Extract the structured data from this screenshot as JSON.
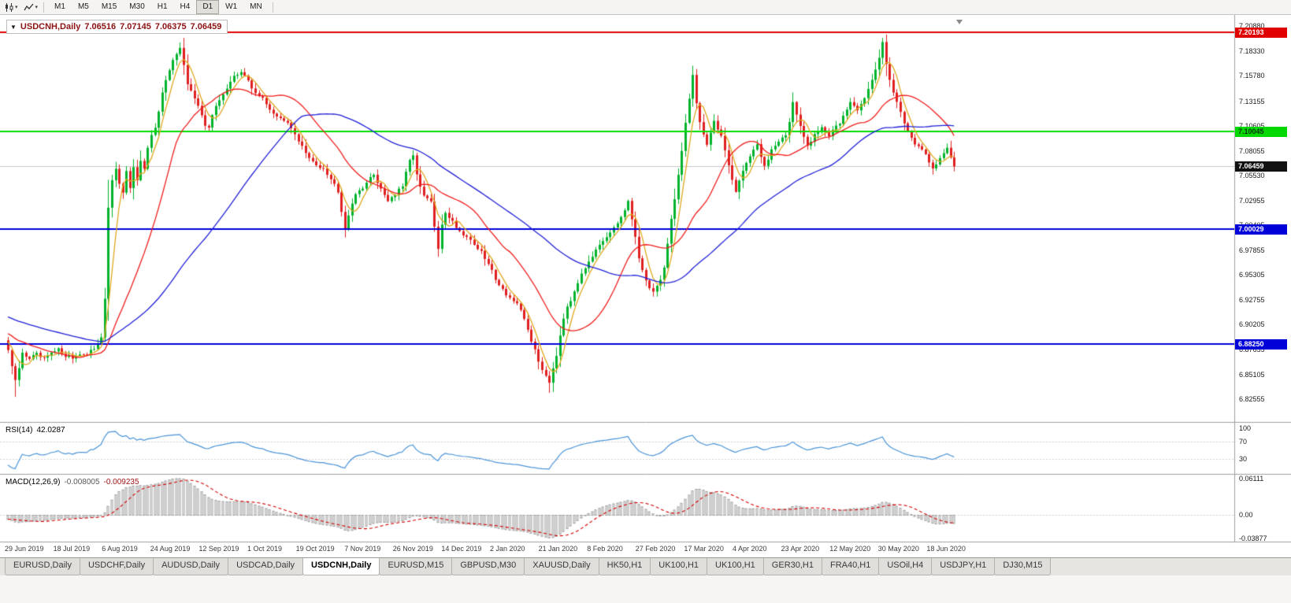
{
  "toolbar": {
    "icons": [
      {
        "name": "candlestick-chart-icon"
      },
      {
        "name": "line-chart-icon"
      }
    ],
    "timeframes": [
      "M1",
      "M5",
      "M15",
      "M30",
      "H1",
      "H4",
      "D1",
      "W1",
      "MN"
    ],
    "active_timeframe": "D1"
  },
  "chart": {
    "symbol_period": "USDCNH,Daily",
    "ohlc": {
      "open": "7.06516",
      "high": "7.07145",
      "low": "7.06375",
      "close": "7.06459"
    },
    "collapse_caret": "▼",
    "price_axis": {
      "labels": [
        "7.20880",
        "7.18330",
        "7.15780",
        "7.13155",
        "7.10605",
        "7.08055",
        "7.05530",
        "7.02955",
        "7.00405",
        "6.97855",
        "6.95305",
        "6.92755",
        "6.90205",
        "6.87655",
        "6.85105",
        "6.82555"
      ],
      "badges": [
        {
          "value": "7.20193",
          "bg": "#e00000",
          "fg": "#ffffff"
        },
        {
          "value": "7.10045",
          "bg": "#00d800",
          "fg": "#00320a"
        },
        {
          "value": "7.06459",
          "bg": "#111111",
          "fg": "#ffffff"
        },
        {
          "value": "7.00029",
          "bg": "#0000d8",
          "fg": "#ffffff"
        },
        {
          "value": "6.88250",
          "bg": "#0000d8",
          "fg": "#ffffff"
        }
      ]
    }
  },
  "rsi": {
    "label": "RSI(14)",
    "value": "42.0287",
    "axis_labels": [
      "100",
      "70",
      "30"
    ]
  },
  "macd": {
    "label": "MACD(12,26,9)",
    "main_value": "-0.008005",
    "signal_value": "-0.009235",
    "axis_labels": [
      "0.06111",
      "0.00",
      "-0.03877"
    ]
  },
  "date_axis": [
    "29 Jun 2019",
    "18 Jul 2019",
    "6 Aug 2019",
    "24 Aug 2019",
    "12 Sep 2019",
    "1 Oct 2019",
    "19 Oct 2019",
    "7 Nov 2019",
    "26 Nov 2019",
    "14 Dec 2019",
    "2 Jan 2020",
    "21 Jan 2020",
    "8 Feb 2020",
    "27 Feb 2020",
    "17 Mar 2020",
    "4 Apr 2020",
    "23 Apr 2020",
    "12 May 2020",
    "30 May 2020",
    "18 Jun 2020"
  ],
  "tabs": {
    "items": [
      "EURUSD,Daily",
      "USDCHF,Daily",
      "AUDUSD,Daily",
      "USDCAD,Daily",
      "USDCNH,Daily",
      "EURUSD,M15",
      "GBPUSD,M30",
      "XAUUSD,Daily",
      "HK50,H1",
      "UK100,H1",
      "UK100,H1",
      "GER30,H1",
      "FRA40,H1",
      "USOil,H4",
      "USDJPY,H1",
      "DJ30,M15"
    ],
    "active_index": 4
  },
  "chart_data": {
    "type": "candlestick",
    "symbol": "USDCNH",
    "timeframe": "Daily",
    "ylim": [
      6.82555,
      7.2088
    ],
    "y_tick_step": 0.0255,
    "x_labels": [
      "29 Jun 2019",
      "18 Jul 2019",
      "6 Aug 2019",
      "24 Aug 2019",
      "12 Sep 2019",
      "1 Oct 2019",
      "19 Oct 2019",
      "7 Nov 2019",
      "26 Nov 2019",
      "14 Dec 2019",
      "2 Jan 2020",
      "21 Jan 2020",
      "8 Feb 2020",
      "27 Feb 2020",
      "17 Mar 2020",
      "4 Apr 2020",
      "23 Apr 2020",
      "12 May 2020",
      "30 May 2020",
      "18 Jun 2020"
    ],
    "num_candles": 265,
    "up_color": "#00b32c",
    "down_color": "#e02020",
    "current_price": 7.06459,
    "anchors": [
      [
        0,
        6.876
      ],
      [
        2,
        6.843
      ],
      [
        4,
        6.872
      ],
      [
        6,
        6.868
      ],
      [
        8,
        6.871
      ],
      [
        10,
        6.866
      ],
      [
        12,
        6.872
      ],
      [
        14,
        6.876
      ],
      [
        16,
        6.871
      ],
      [
        18,
        6.868
      ],
      [
        20,
        6.873
      ],
      [
        22,
        6.87
      ],
      [
        24,
        6.878
      ],
      [
        26,
        6.89
      ],
      [
        27,
        6.93
      ],
      [
        28,
        7.02
      ],
      [
        29,
        7.051
      ],
      [
        30,
        7.06
      ],
      [
        31,
        7.048
      ],
      [
        32,
        7.036
      ],
      [
        33,
        7.058
      ],
      [
        34,
        7.044
      ],
      [
        35,
        7.062
      ],
      [
        36,
        7.05
      ],
      [
        37,
        7.068
      ],
      [
        38,
        7.06
      ],
      [
        39,
        7.083
      ],
      [
        40,
        7.096
      ],
      [
        41,
        7.106
      ],
      [
        42,
        7.123
      ],
      [
        43,
        7.14
      ],
      [
        44,
        7.152
      ],
      [
        45,
        7.163
      ],
      [
        46,
        7.172
      ],
      [
        47,
        7.182
      ],
      [
        48,
        7.188
      ],
      [
        49,
        7.168
      ],
      [
        50,
        7.15
      ],
      [
        51,
        7.142
      ],
      [
        52,
        7.133
      ],
      [
        53,
        7.125
      ],
      [
        54,
        7.118
      ],
      [
        55,
        7.108
      ],
      [
        56,
        7.105
      ],
      [
        57,
        7.116
      ],
      [
        58,
        7.126
      ],
      [
        59,
        7.132
      ],
      [
        60,
        7.14
      ],
      [
        61,
        7.146
      ],
      [
        63,
        7.156
      ],
      [
        65,
        7.162
      ],
      [
        66,
        7.158
      ],
      [
        68,
        7.145
      ],
      [
        70,
        7.138
      ],
      [
        72,
        7.128
      ],
      [
        74,
        7.12
      ],
      [
        76,
        7.113
      ],
      [
        78,
        7.108
      ],
      [
        80,
        7.098
      ],
      [
        82,
        7.085
      ],
      [
        84,
        7.072
      ],
      [
        86,
        7.066
      ],
      [
        88,
        7.064
      ],
      [
        90,
        7.052
      ],
      [
        92,
        7.04
      ],
      [
        93,
        7.02
      ],
      [
        94,
        7.001
      ],
      [
        95,
        7.015
      ],
      [
        96,
        7.028
      ],
      [
        98,
        7.04
      ],
      [
        100,
        7.048
      ],
      [
        102,
        7.056
      ],
      [
        104,
        7.042
      ],
      [
        106,
        7.03
      ],
      [
        108,
        7.036
      ],
      [
        110,
        7.044
      ],
      [
        112,
        7.07
      ],
      [
        113,
        7.078
      ],
      [
        114,
        7.056
      ],
      [
        115,
        7.042
      ],
      [
        116,
        7.034
      ],
      [
        118,
        7.028
      ],
      [
        120,
        6.978
      ],
      [
        121,
        7.005
      ],
      [
        122,
        7.018
      ],
      [
        124,
        7.008
      ],
      [
        126,
        6.998
      ],
      [
        128,
        6.993
      ],
      [
        130,
        6.985
      ],
      [
        132,
        6.976
      ],
      [
        134,
        6.964
      ],
      [
        136,
        6.95
      ],
      [
        138,
        6.938
      ],
      [
        140,
        6.93
      ],
      [
        142,
        6.922
      ],
      [
        144,
        6.908
      ],
      [
        146,
        6.886
      ],
      [
        148,
        6.864
      ],
      [
        150,
        6.85
      ],
      [
        151,
        6.844
      ],
      [
        152,
        6.858
      ],
      [
        153,
        6.872
      ],
      [
        154,
        6.892
      ],
      [
        155,
        6.91
      ],
      [
        156,
        6.922
      ],
      [
        158,
        6.934
      ],
      [
        160,
        6.956
      ],
      [
        162,
        6.968
      ],
      [
        164,
        6.978
      ],
      [
        166,
        6.986
      ],
      [
        168,
        6.996
      ],
      [
        170,
        7.006
      ],
      [
        172,
        7.02
      ],
      [
        173,
        7.028
      ],
      [
        174,
        7.008
      ],
      [
        175,
        6.993
      ],
      [
        176,
        6.972
      ],
      [
        177,
        6.958
      ],
      [
        178,
        6.946
      ],
      [
        180,
        6.936
      ],
      [
        182,
        6.948
      ],
      [
        183,
        6.962
      ],
      [
        184,
        6.986
      ],
      [
        185,
        7.01
      ],
      [
        186,
        7.032
      ],
      [
        187,
        7.056
      ],
      [
        188,
        7.08
      ],
      [
        189,
        7.108
      ],
      [
        190,
        7.132
      ],
      [
        191,
        7.158
      ],
      [
        192,
        7.13
      ],
      [
        193,
        7.112
      ],
      [
        194,
        7.098
      ],
      [
        195,
        7.088
      ],
      [
        196,
        7.1
      ],
      [
        197,
        7.112
      ],
      [
        198,
        7.102
      ],
      [
        199,
        7.094
      ],
      [
        200,
        7.082
      ],
      [
        201,
        7.066
      ],
      [
        202,
        7.052
      ],
      [
        203,
        7.04
      ],
      [
        204,
        7.05
      ],
      [
        205,
        7.06
      ],
      [
        206,
        7.068
      ],
      [
        207,
        7.076
      ],
      [
        208,
        7.082
      ],
      [
        209,
        7.086
      ],
      [
        210,
        7.074
      ],
      [
        211,
        7.064
      ],
      [
        212,
        7.072
      ],
      [
        213,
        7.08
      ],
      [
        214,
        7.086
      ],
      [
        215,
        7.09
      ],
      [
        217,
        7.096
      ],
      [
        218,
        7.112
      ],
      [
        219,
        7.132
      ],
      [
        220,
        7.12
      ],
      [
        221,
        7.108
      ],
      [
        222,
        7.094
      ],
      [
        223,
        7.086
      ],
      [
        224,
        7.09
      ],
      [
        225,
        7.096
      ],
      [
        226,
        7.102
      ],
      [
        227,
        7.106
      ],
      [
        228,
        7.1
      ],
      [
        229,
        7.096
      ],
      [
        230,
        7.1
      ],
      [
        231,
        7.105
      ],
      [
        232,
        7.11
      ],
      [
        233,
        7.116
      ],
      [
        234,
        7.124
      ],
      [
        235,
        7.13
      ],
      [
        236,
        7.127
      ],
      [
        237,
        7.124
      ],
      [
        238,
        7.13
      ],
      [
        239,
        7.136
      ],
      [
        240,
        7.144
      ],
      [
        241,
        7.152
      ],
      [
        242,
        7.163
      ],
      [
        243,
        7.176
      ],
      [
        244,
        7.192
      ],
      [
        245,
        7.172
      ],
      [
        246,
        7.155
      ],
      [
        247,
        7.142
      ],
      [
        248,
        7.13
      ],
      [
        249,
        7.12
      ],
      [
        250,
        7.11
      ],
      [
        251,
        7.102
      ],
      [
        252,
        7.095
      ],
      [
        253,
        7.089
      ],
      [
        254,
        7.085
      ],
      [
        255,
        7.08
      ],
      [
        256,
        7.075
      ],
      [
        257,
        7.07
      ],
      [
        258,
        7.062
      ],
      [
        259,
        7.068
      ],
      [
        260,
        7.074
      ],
      [
        261,
        7.079
      ],
      [
        262,
        7.082
      ],
      [
        263,
        7.073
      ],
      [
        264,
        7.0646
      ]
    ],
    "extremes": [
      {
        "i": 2,
        "low": 6.828
      },
      {
        "i": 48,
        "high": 7.192
      },
      {
        "i": 151,
        "low": 6.832
      },
      {
        "i": 191,
        "high": 7.168
      },
      {
        "i": 244,
        "high": 7.1965
      }
    ],
    "hlines": [
      {
        "price": 7.20193,
        "color": "#e00000"
      },
      {
        "price": 7.10045,
        "color": "#00dd00"
      },
      {
        "price": 7.00029,
        "color": "#0000dd"
      },
      {
        "price": 6.8825,
        "color": "#0000dd"
      }
    ],
    "moving_averages": [
      {
        "period": 5,
        "color": "#dfa81f"
      },
      {
        "period": 20,
        "color": "#f21d1d"
      },
      {
        "period": 55,
        "color": "#2121d9"
      }
    ],
    "rsi": {
      "period": 14,
      "color": "#4a94d8",
      "levels": [
        70,
        30
      ],
      "current": 42.0287
    },
    "macd": {
      "fast": 12,
      "slow": 26,
      "signal": 9,
      "histogram_color": "#9e9e9e",
      "signal_color": "#d40000",
      "range": [
        -0.03877,
        0.06111
      ],
      "current_main": -0.008005,
      "current_signal": -0.009235
    }
  }
}
